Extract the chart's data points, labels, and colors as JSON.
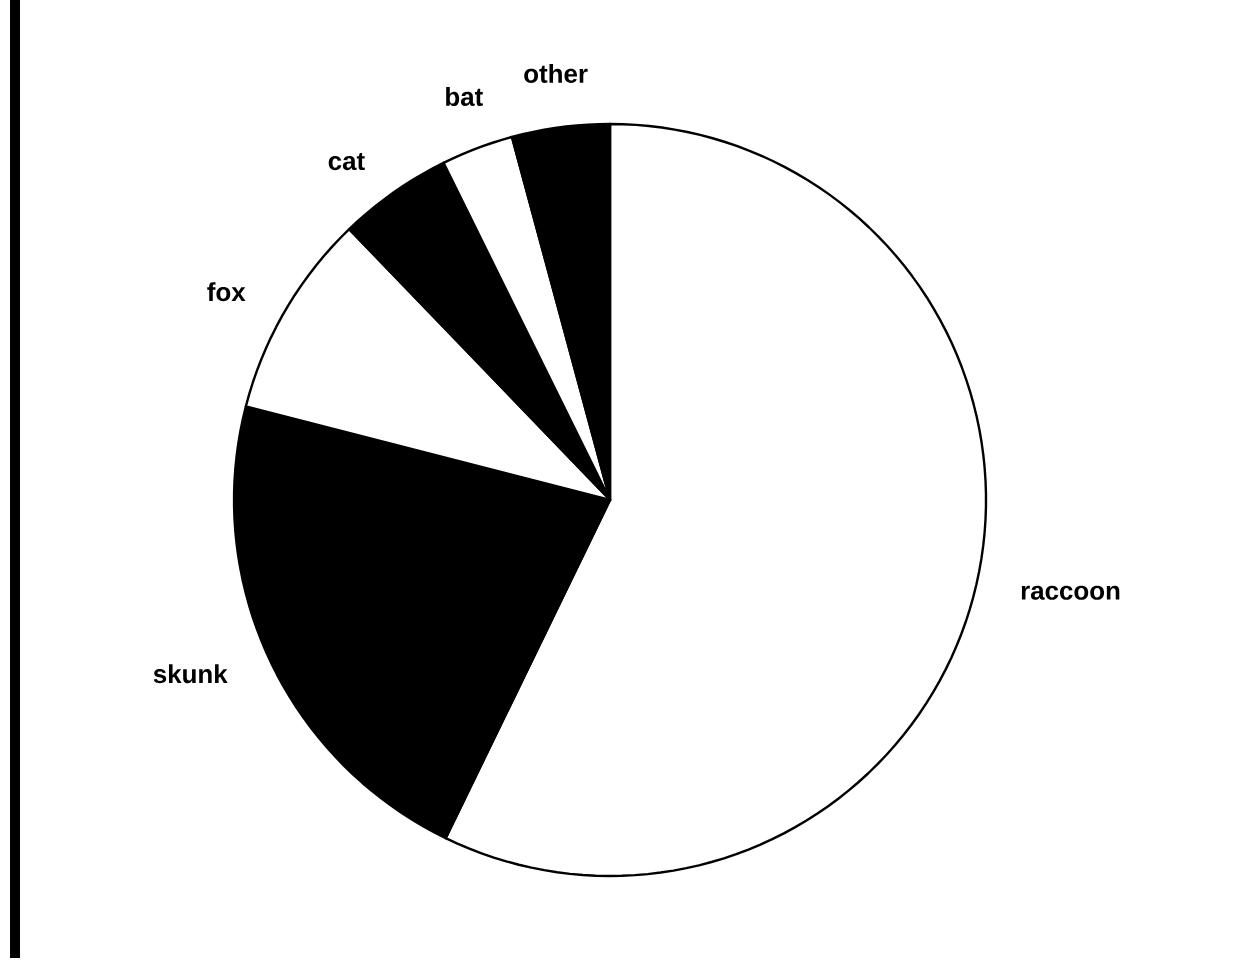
{
  "chart_data": {
    "type": "pie",
    "categories": [
      "raccoon",
      "skunk",
      "fox",
      "cat",
      "bat",
      "other"
    ],
    "values": [
      57.2,
      21.8,
      8.8,
      4.9,
      3.1,
      4.2
    ],
    "colors": [
      "#ffffff",
      "#000000",
      "#ffffff",
      "#000000",
      "#ffffff",
      "#000000"
    ]
  }
}
